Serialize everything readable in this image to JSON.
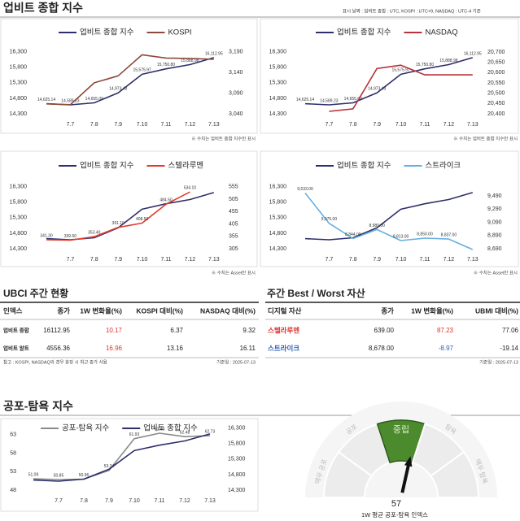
{
  "header": {
    "title": "업비트 종합 지수",
    "date_note": "표시 날짜 : 업비트 종합 : UTC, KOSPI : UTC+9, NASDAQ : UTC-4 기준"
  },
  "chart_data": [
    {
      "type": "line",
      "note": "※ 수치는 업비트 종합 지수만 표시",
      "categories": [
        null,
        "7.7",
        "7.8",
        "7.9",
        "7.10",
        "7.11",
        "7.12",
        "7.13"
      ],
      "ylim": [
        14300,
        16400
      ],
      "yticks": [
        {
          "value": 14300,
          "label": "14,300"
        },
        {
          "value": 14800,
          "label": "14,800"
        },
        {
          "value": 15300,
          "label": "15,300"
        },
        {
          "value": 15800,
          "label": "15,800"
        },
        {
          "value": 16300,
          "label": "16,300"
        }
      ],
      "y2lim": [
        3040,
        3197.5
      ],
      "y2ticks": [
        {
          "value": 3040,
          "label": "3,040"
        },
        {
          "value": 3090,
          "label": "3,090"
        },
        {
          "value": 3140,
          "label": "3,140"
        },
        {
          "value": 3190,
          "label": "3,190"
        }
      ],
      "series": [
        {
          "name": "업비트 종합 지수",
          "color": "#2e2f6b",
          "values": [
            14625.14,
            14589.23,
            14655.09,
            14973.43,
            15575.97,
            15750.8,
            15888.98,
            16112.95
          ],
          "value_labels": [
            "14,625.14",
            "14,589.23",
            "14,655.09",
            "14,973.43",
            "15,575.97",
            "15,750.80",
            "15,888.98",
            "16,112.95"
          ]
        },
        {
          "name": "KOSPI",
          "color": "#8c4a3c",
          "axis": "y2",
          "values": [
            3064,
            3062,
            3115,
            3132,
            3183,
            3175,
            3174,
            3172
          ]
        }
      ]
    },
    {
      "type": "line",
      "note": "※ 수치는 업비트 종합 지수만 표시",
      "categories": [
        null,
        "7.7",
        "7.8",
        "7.9",
        "7.10",
        "7.11",
        "7.12",
        "7.13"
      ],
      "ylim": [
        14300,
        16400
      ],
      "yticks": [
        {
          "value": 14300,
          "label": "14,300"
        },
        {
          "value": 14800,
          "label": "14,800"
        },
        {
          "value": 15300,
          "label": "15,300"
        },
        {
          "value": 15800,
          "label": "15,800"
        },
        {
          "value": 16300,
          "label": "16,300"
        }
      ],
      "y2lim": [
        20400,
        20715.8
      ],
      "y2ticks": [
        {
          "value": 20400,
          "label": "20,400"
        },
        {
          "value": 20450,
          "label": "20,450"
        },
        {
          "value": 20500,
          "label": "20,500"
        },
        {
          "value": 20550,
          "label": "20,550"
        },
        {
          "value": 20600,
          "label": "20,600"
        },
        {
          "value": 20650,
          "label": "20,650"
        },
        {
          "value": 20700,
          "label": "20,700"
        }
      ],
      "series": [
        {
          "name": "업비트 종합 지수",
          "color": "#2e2f6b",
          "values": [
            14625.14,
            14589.23,
            14655.09,
            14973.43,
            15575.97,
            15750.8,
            15888.98,
            16112.95
          ],
          "value_labels": [
            "14,625.14",
            "14,589.23",
            "14,655.09",
            "14,973.43",
            "15,575.97",
            "15,750.80",
            "15,888.98",
            "16,112.95"
          ]
        },
        {
          "name": "NASDAQ",
          "color": "#b8323a",
          "axis": "y2",
          "values": [
            null,
            20412,
            20424,
            20620,
            20636,
            20589,
            20589,
            20589
          ]
        }
      ]
    },
    {
      "type": "line",
      "note": "※ 수치는 Asset만 표시",
      "categories": [
        null,
        "7.7",
        "7.8",
        "7.9",
        "7.10",
        "7.11",
        "7.12",
        "7.13"
      ],
      "ylim": [
        14300,
        16400
      ],
      "yticks": [
        {
          "value": 14300,
          "label": "14,300"
        },
        {
          "value": 14800,
          "label": "14,800"
        },
        {
          "value": 15300,
          "label": "15,300"
        },
        {
          "value": 15800,
          "label": "15,800"
        },
        {
          "value": 16300,
          "label": "16,300"
        }
      ],
      "y2lim": [
        305,
        567.5
      ],
      "y2ticks": [
        305,
        355,
        405,
        455,
        505,
        555
      ],
      "series": [
        {
          "name": "업비트 종합 지수",
          "color": "#2e2f6b",
          "values": [
            14625.14,
            14589.23,
            14655.09,
            14973.43,
            15575.97,
            15750.8,
            15888.98,
            16112.95
          ]
        },
        {
          "name": "스텔라루멘",
          "color": "#e03a2e",
          "axis": "y2",
          "values": [
            341.3,
            339.5,
            353.4,
            391.1,
            408.5,
            484.5,
            534.1,
            null
          ],
          "value_labels": [
            "341.30",
            "339.50",
            "353.40",
            "391.10",
            "408.50",
            "484.50",
            "534.10",
            null
          ]
        }
      ]
    },
    {
      "type": "line",
      "note": "※ 수치는 Asset만 표시",
      "categories": [
        null,
        "7.7",
        "7.8",
        "7.9",
        "7.10",
        "7.11",
        "7.12",
        "7.13"
      ],
      "ylim": [
        14300,
        16400
      ],
      "yticks": [
        {
          "value": 14300,
          "label": "14,300"
        },
        {
          "value": 14800,
          "label": "14,800"
        },
        {
          "value": 15300,
          "label": "15,300"
        },
        {
          "value": 15800,
          "label": "15,800"
        },
        {
          "value": 16300,
          "label": "16,300"
        }
      ],
      "y2lim": [
        8690,
        9675
      ],
      "y2ticks": [
        {
          "value": 8690,
          "label": "8,690"
        },
        {
          "value": 8890,
          "label": "8,890"
        },
        {
          "value": 9090,
          "label": "9,090"
        },
        {
          "value": 9290,
          "label": "9,290"
        },
        {
          "value": 9490,
          "label": "9,490"
        }
      ],
      "series": [
        {
          "name": "업비트 종합 지수",
          "color": "#2e2f6b",
          "values": [
            14625.14,
            14589.23,
            14655.09,
            14973.43,
            15575.97,
            15750.8,
            15888.98,
            16112.95
          ]
        },
        {
          "name": "스트라이크",
          "color": "#66b0e0",
          "axis": "y2",
          "values": [
            9533,
            9075,
            8844,
            8980,
            8813,
            8850,
            8837,
            8678
          ],
          "value_labels": [
            "9,533.00",
            "9,075.00",
            "8,844.00",
            "8,980.00",
            "8,813.00",
            "8,850.00",
            "8,837.00",
            null
          ]
        }
      ]
    },
    {
      "type": "line",
      "title": "공포-탐욕 지수",
      "categories": [
        null,
        "7.7",
        "7.8",
        "7.9",
        "7.10",
        "7.11",
        "7.12",
        "7.13"
      ],
      "ylim": [
        48,
        65.6
      ],
      "yticks": [
        48,
        53,
        58,
        63
      ],
      "y2lim": [
        14300,
        16400
      ],
      "y2ticks": [
        {
          "value": 14300,
          "label": "14,300"
        },
        {
          "value": 14800,
          "label": "14,800"
        },
        {
          "value": 15300,
          "label": "15,300"
        },
        {
          "value": 15800,
          "label": "15,800"
        },
        {
          "value": 16300,
          "label": "16,300"
        }
      ],
      "series": [
        {
          "name": "공포-탐욕 지수",
          "color": "#8a8a8a",
          "values": [
            51.09,
            50.85,
            50.96,
            53.34,
            61.93,
            63.4,
            62.48,
            62.73
          ],
          "value_labels": [
            "51.09",
            "50.85",
            "50.96",
            "53.34",
            "61.93",
            "63.40",
            "62.48",
            "62.73"
          ]
        },
        {
          "name": "업비트 종합 지수",
          "color": "#2e2f6b",
          "axis": "y2",
          "values": [
            14625.14,
            14589.23,
            14655.09,
            14973.43,
            15575.97,
            15750.8,
            15888.98,
            16112.95
          ]
        }
      ]
    },
    {
      "type": "gauge",
      "value": 57,
      "ylim": [
        0,
        100
      ],
      "caption": "1W 평균 공포-탐욕 인덱스",
      "highlight_color": "#4c8a2e",
      "bands": [
        {
          "label": "매우 공포",
          "range": [
            0,
            20
          ]
        },
        {
          "label": "공포",
          "range": [
            20,
            40
          ]
        },
        {
          "label": "중립",
          "range": [
            40,
            60
          ]
        },
        {
          "label": "탐욕",
          "range": [
            60,
            80
          ]
        },
        {
          "label": "매우 탐욕",
          "range": [
            80,
            100
          ]
        }
      ]
    }
  ],
  "tables": [
    {
      "title": "UBCI 주간 현황",
      "columns": [
        "인덱스",
        "종가",
        "1W 변화율(%)",
        "KOSPI 대비(%)",
        "NASDAQ 대비(%)"
      ],
      "rows": [
        [
          "업비트 종합",
          "16112.95",
          "10.17",
          "6.37",
          "9.32"
        ],
        [
          "업비트 알트",
          "4556.36",
          "16.96",
          "13.16",
          "16.11"
        ]
      ],
      "notes": [
        "참고 : KOSPI, NASDAQ의 경우 휴장 시 최근 종가 사용",
        "기준일 : 2025-07-13"
      ]
    },
    {
      "title": "주간 Best / Worst 자산",
      "columns": [
        "디지털 자산",
        "종가",
        "1W 변화율(%)",
        "UBMI 대비(%)"
      ],
      "rows": [
        [
          "스텔라루멘",
          "639.00",
          "87.23",
          "77.06"
        ],
        [
          "스트라이크",
          "8,678.00",
          "-8.97",
          "-19.14"
        ]
      ],
      "notes": [
        "기준일 : 2025-07-13"
      ]
    }
  ]
}
